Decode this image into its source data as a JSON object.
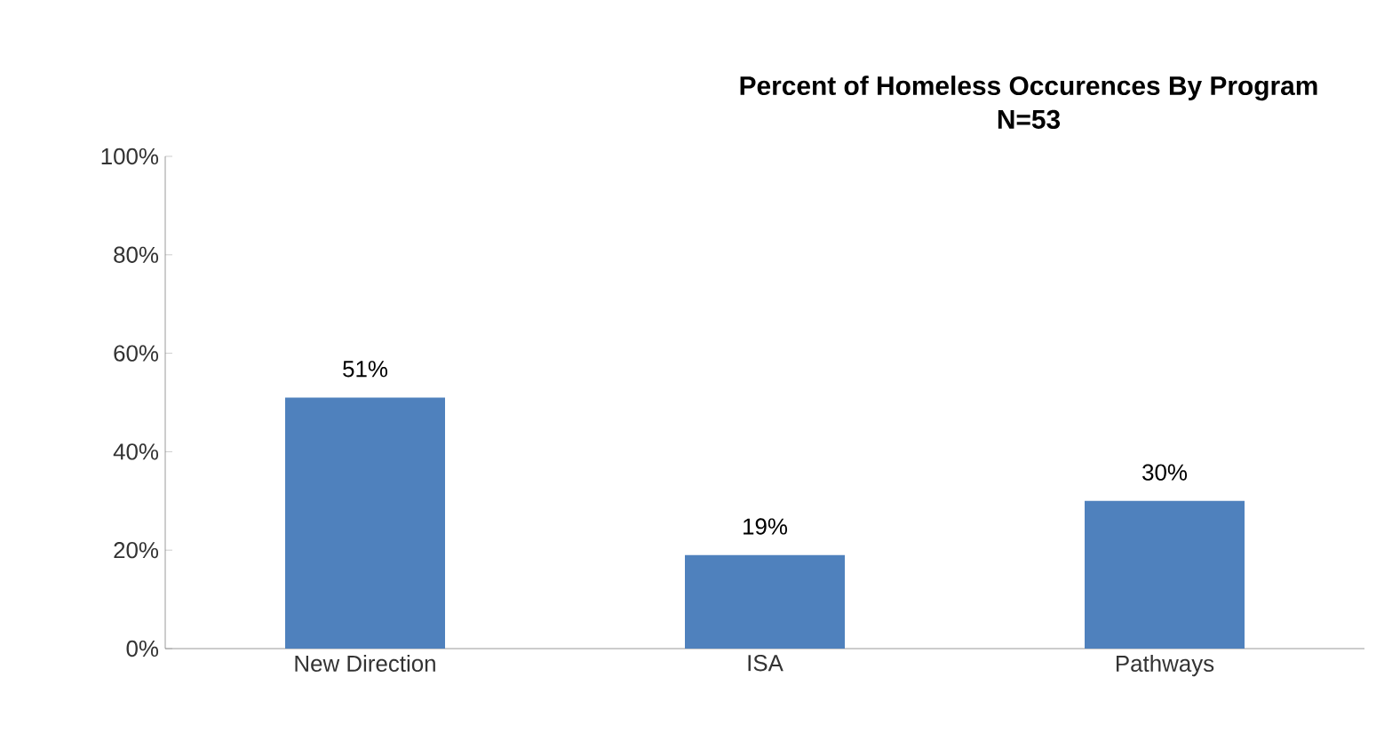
{
  "chart_data": {
    "type": "bar",
    "title": "Percent of Homeless Occurences By Program",
    "subtitle": "N=53",
    "categories": [
      "New Direction",
      "ISA",
      "Pathways"
    ],
    "values": [
      51,
      19,
      30
    ],
    "color": "#4f81bd",
    "value_labels": [
      "51%",
      "19%",
      "30%"
    ],
    "ylim": [
      0,
      100
    ],
    "yticks": [
      {
        "value": 0,
        "label": "0%"
      },
      {
        "value": 20,
        "label": "20%"
      },
      {
        "value": 40,
        "label": "40%"
      },
      {
        "value": 60,
        "label": "60%"
      },
      {
        "value": 80,
        "label": "80%"
      },
      {
        "value": 100,
        "label": "100%"
      }
    ]
  }
}
